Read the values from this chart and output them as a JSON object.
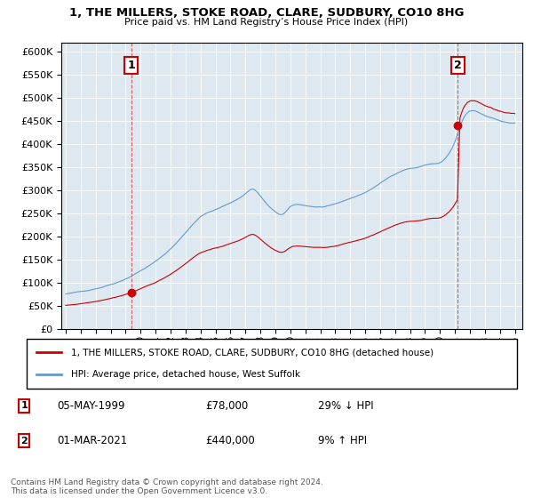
{
  "title": "1, THE MILLERS, STOKE ROAD, CLARE, SUDBURY, CO10 8HG",
  "subtitle": "Price paid vs. HM Land Registry’s House Price Index (HPI)",
  "legend_label1": "1, THE MILLERS, STOKE ROAD, CLARE, SUDBURY, CO10 8HG (detached house)",
  "legend_label2": "HPI: Average price, detached house, West Suffolk",
  "annotation1_date": "05-MAY-1999",
  "annotation1_price": "£78,000",
  "annotation1_hpi": "29% ↓ HPI",
  "annotation2_date": "01-MAR-2021",
  "annotation2_price": "£440,000",
  "annotation2_hpi": "9% ↑ HPI",
  "footer": "Contains HM Land Registry data © Crown copyright and database right 2024.\nThis data is licensed under the Open Government Licence v3.0.",
  "sale1_year": 1999.37,
  "sale1_price": 78000,
  "sale2_year": 2021.17,
  "sale2_price": 440000,
  "red_color": "#cc0000",
  "blue_color": "#6699cc",
  "bg_color": "#dde8f0",
  "ylim_max": 620000,
  "ylim_min": 0,
  "yticks": [
    0,
    50000,
    100000,
    150000,
    200000,
    250000,
    300000,
    350000,
    400000,
    450000,
    500000,
    550000,
    600000
  ]
}
